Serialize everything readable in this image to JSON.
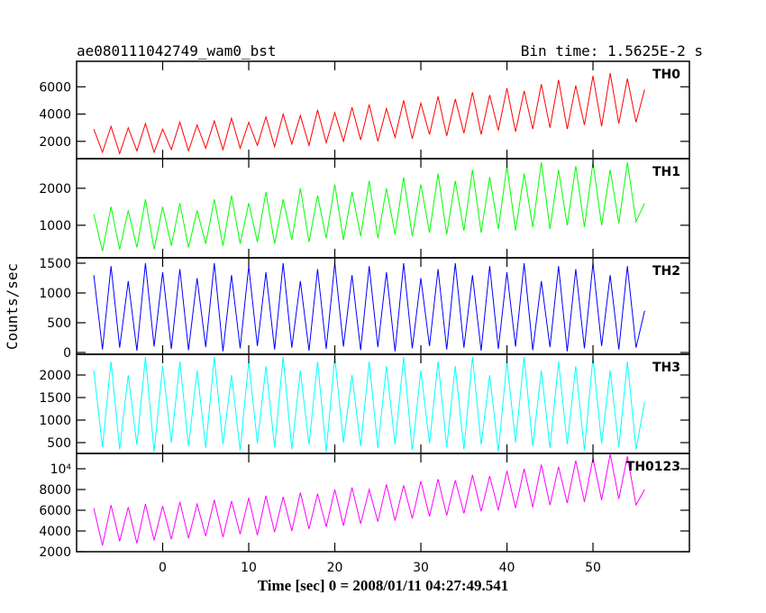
{
  "chart_data": [
    {
      "type": "line",
      "title": "ae080111042749_wam0_bst",
      "subtitle": "Bin time: 1.5625E-2 s",
      "x": [
        -8,
        -7,
        -6,
        -5,
        -4,
        -3,
        -2,
        -1,
        0,
        1,
        2,
        3,
        4,
        5,
        6,
        7,
        8,
        9,
        10,
        11,
        12,
        13,
        14,
        15,
        16,
        17,
        18,
        19,
        20,
        21,
        22,
        23,
        24,
        25,
        26,
        27,
        28,
        29,
        30,
        31,
        32,
        33,
        34,
        35,
        36,
        37,
        38,
        39,
        40,
        41,
        42,
        43,
        44,
        45,
        46,
        47,
        48,
        49,
        50,
        51,
        52,
        53,
        54,
        55,
        56
      ],
      "xlim": [
        -10,
        61.2
      ],
      "ylim": [
        730,
        7870
      ],
      "yticks": [
        2000,
        4000,
        6000
      ],
      "series": [
        {
          "name": "TH0",
          "color": "#ff0000",
          "values": [
            2900,
            1200,
            3100,
            1100,
            3000,
            1300,
            3300,
            1200,
            2900,
            1400,
            3400,
            1300,
            3200,
            1500,
            3500,
            1400,
            3700,
            1500,
            3400,
            1700,
            3800,
            1600,
            4000,
            1800,
            3900,
            1700,
            4300,
            1900,
            4100,
            2000,
            4500,
            2100,
            4700,
            2000,
            4400,
            2300,
            5000,
            2200,
            4800,
            2500,
            5300,
            2400,
            5100,
            2600,
            5600,
            2500,
            5400,
            2800,
            5900,
            2700,
            5700,
            2900,
            6200,
            3000,
            6500,
            2900,
            6100,
            3200,
            6800,
            3100,
            7000,
            3300,
            6600,
            3400,
            5800
          ]
        }
      ]
    },
    {
      "type": "line",
      "x": [
        -8,
        -7,
        -6,
        -5,
        -4,
        -3,
        -2,
        -1,
        0,
        1,
        2,
        3,
        4,
        5,
        6,
        7,
        8,
        9,
        10,
        11,
        12,
        13,
        14,
        15,
        16,
        17,
        18,
        19,
        20,
        21,
        22,
        23,
        24,
        25,
        26,
        27,
        28,
        29,
        30,
        31,
        32,
        33,
        34,
        35,
        36,
        37,
        38,
        39,
        40,
        41,
        42,
        43,
        44,
        45,
        46,
        47,
        48,
        49,
        50,
        51,
        52,
        53,
        54,
        55,
        56
      ],
      "xlim": [
        -10,
        61.2
      ],
      "ylim": [
        120,
        2800
      ],
      "yticks": [
        1000,
        2000
      ],
      "series": [
        {
          "name": "TH1",
          "color": "#00ff00",
          "values": [
            1300,
            300,
            1500,
            350,
            1400,
            400,
            1700,
            350,
            1500,
            450,
            1600,
            400,
            1400,
            500,
            1700,
            450,
            1800,
            500,
            1600,
            550,
            1900,
            500,
            1700,
            600,
            2000,
            550,
            1800,
            650,
            2100,
            600,
            1900,
            700,
            2200,
            650,
            2000,
            750,
            2300,
            700,
            2100,
            800,
            2400,
            750,
            2200,
            850,
            2500,
            800,
            2300,
            900,
            2600,
            850,
            2400,
            950,
            2700,
            900,
            2500,
            1000,
            2600,
            950,
            2700,
            1000,
            2500,
            1050,
            2700,
            1100,
            1600
          ]
        }
      ]
    },
    {
      "type": "line",
      "ylabel": "Counts/sec",
      "x": [
        -8,
        -7,
        -6,
        -5,
        -4,
        -3,
        -2,
        -1,
        0,
        1,
        2,
        3,
        4,
        5,
        6,
        7,
        8,
        9,
        10,
        11,
        12,
        13,
        14,
        15,
        16,
        17,
        18,
        19,
        20,
        21,
        22,
        23,
        24,
        25,
        26,
        27,
        28,
        29,
        30,
        31,
        32,
        33,
        34,
        35,
        36,
        37,
        38,
        39,
        40,
        41,
        42,
        43,
        44,
        45,
        46,
        47,
        48,
        49,
        50,
        51,
        52,
        53,
        54,
        55,
        56
      ],
      "xlim": [
        -10,
        61.2
      ],
      "ylim": [
        -30,
        1590
      ],
      "yticks": [
        0,
        500,
        1000,
        1500
      ],
      "series": [
        {
          "name": "TH2",
          "color": "#0000ff",
          "values": [
            1300,
            50,
            1450,
            80,
            1200,
            30,
            1500,
            100,
            1350,
            60,
            1400,
            40,
            1250,
            90,
            1500,
            20,
            1300,
            70,
            1450,
            110,
            1350,
            50,
            1500,
            80,
            1200,
            30,
            1400,
            60,
            1500,
            100,
            1300,
            40,
            1450,
            90,
            1350,
            20,
            1500,
            70,
            1250,
            110,
            1400,
            50,
            1500,
            80,
            1300,
            30,
            1450,
            60,
            1350,
            100,
            1500,
            40,
            1200,
            90,
            1450,
            20,
            1400,
            70,
            1500,
            110,
            1300,
            50,
            1450,
            80,
            700
          ]
        }
      ]
    },
    {
      "type": "line",
      "x": [
        -8,
        -7,
        -6,
        -5,
        -4,
        -3,
        -2,
        -1,
        0,
        1,
        2,
        3,
        4,
        5,
        6,
        7,
        8,
        9,
        10,
        11,
        12,
        13,
        14,
        15,
        16,
        17,
        18,
        19,
        20,
        21,
        22,
        23,
        24,
        25,
        26,
        27,
        28,
        29,
        30,
        31,
        32,
        33,
        34,
        35,
        36,
        37,
        38,
        39,
        40,
        41,
        42,
        43,
        44,
        45,
        46,
        47,
        48,
        49,
        50,
        51,
        52,
        53,
        54,
        55,
        56
      ],
      "xlim": [
        -10,
        61.2
      ],
      "ylim": [
        260,
        2460
      ],
      "yticks": [
        500,
        1000,
        1500,
        2000
      ],
      "series": [
        {
          "name": "TH3",
          "color": "#00ffff",
          "values": [
            2100,
            400,
            2300,
            350,
            2000,
            450,
            2400,
            300,
            2200,
            500,
            2300,
            420,
            2100,
            380,
            2400,
            460,
            2000,
            330,
            2300,
            480,
            2200,
            400,
            2400,
            350,
            2100,
            450,
            2300,
            300,
            2400,
            500,
            2000,
            420,
            2300,
            380,
            2200,
            460,
            2400,
            330,
            2100,
            480,
            2300,
            400,
            2200,
            350,
            2400,
            450,
            2000,
            300,
            2300,
            500,
            2400,
            420,
            2100,
            380,
            2300,
            460,
            2200,
            330,
            2400,
            480,
            2100,
            400,
            2300,
            350,
            1400
          ]
        }
      ]
    },
    {
      "type": "line",
      "xlabel": "Time [sec] 0 = 2008/01/11 04:27:49.541",
      "x": [
        -8,
        -7,
        -6,
        -5,
        -4,
        -3,
        -2,
        -1,
        0,
        1,
        2,
        3,
        4,
        5,
        6,
        7,
        8,
        9,
        10,
        11,
        12,
        13,
        14,
        15,
        16,
        17,
        18,
        19,
        20,
        21,
        22,
        23,
        24,
        25,
        26,
        27,
        28,
        29,
        30,
        31,
        32,
        33,
        34,
        35,
        36,
        37,
        38,
        39,
        40,
        41,
        42,
        43,
        44,
        45,
        46,
        47,
        48,
        49,
        50,
        51,
        52,
        53,
        54,
        55,
        56
      ],
      "xlim": [
        -10,
        61.2
      ],
      "xticks": [
        0,
        10,
        20,
        30,
        40,
        50
      ],
      "ylim": [
        2000,
        11480
      ],
      "yticks": [
        2000,
        4000,
        6000,
        8000,
        {
          "value": 10000,
          "label": "10⁴"
        }
      ],
      "series": [
        {
          "name": "TH0123",
          "color": "#ff00ff",
          "values": [
            6200,
            2600,
            6500,
            3000,
            6300,
            2800,
            6600,
            3100,
            6400,
            3200,
            6800,
            3300,
            6600,
            3500,
            7000,
            3400,
            6900,
            3700,
            7200,
            3600,
            7400,
            3900,
            7300,
            4000,
            7700,
            4200,
            7600,
            4400,
            8000,
            4500,
            8200,
            4700,
            8000,
            4900,
            8500,
            5000,
            8400,
            5200,
            8800,
            5400,
            9000,
            5500,
            8900,
            5700,
            9400,
            5900,
            9300,
            6000,
            9800,
            6200,
            10000,
            6300,
            10400,
            6500,
            10200,
            6700,
            10800,
            6800,
            11000,
            7000,
            11400,
            7100,
            11200,
            6500,
            8000
          ]
        }
      ]
    }
  ]
}
